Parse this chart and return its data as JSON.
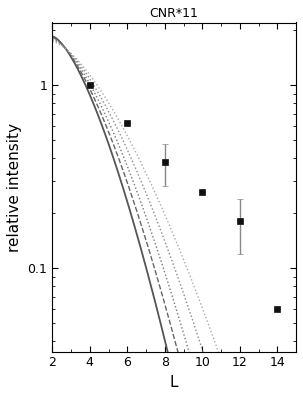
{
  "title": "CNR*11",
  "xlabel": "L",
  "ylabel": "relative intensity",
  "xlim": [
    2,
    15
  ],
  "ylim": [
    0.035,
    2.2
  ],
  "data_x": [
    4,
    6,
    8,
    10,
    12,
    14
  ],
  "data_y": [
    1.0,
    0.62,
    0.38,
    0.26,
    0.18,
    0.06
  ],
  "data_yerr_lo": [
    0.0,
    0.0,
    0.1,
    0.0,
    0.06,
    0.0
  ],
  "data_yerr_hi": [
    0.0,
    0.0,
    0.1,
    0.0,
    0.06,
    0.0
  ],
  "curve_x_start": 2.0,
  "curve_x_end": 15.0,
  "curve_npts": 500,
  "curve_params": [
    {
      "ls": "-",
      "color": "#555555",
      "lw": 1.3,
      "scale": 1.85,
      "decay": 0.26
    },
    {
      "ls": "--",
      "color": "#666666",
      "lw": 1.0,
      "scale": 1.82,
      "decay": 0.228
    },
    {
      "ls": ":",
      "color": "#777777",
      "lw": 1.0,
      "scale": 1.79,
      "decay": 0.2
    },
    {
      "ls": ":",
      "color": "#888888",
      "lw": 1.0,
      "scale": 1.76,
      "decay": 0.172
    },
    {
      "ls": ":",
      "color": "#aaaaaa",
      "lw": 1.0,
      "scale": 1.73,
      "decay": 0.148
    }
  ],
  "marker_color": "#111111",
  "marker_size": 5,
  "ecolor": "#888888",
  "elinewidth": 1.0,
  "capsize": 2.5,
  "title_fontsize": 9,
  "label_fontsize": 11,
  "tick_fontsize": 9
}
